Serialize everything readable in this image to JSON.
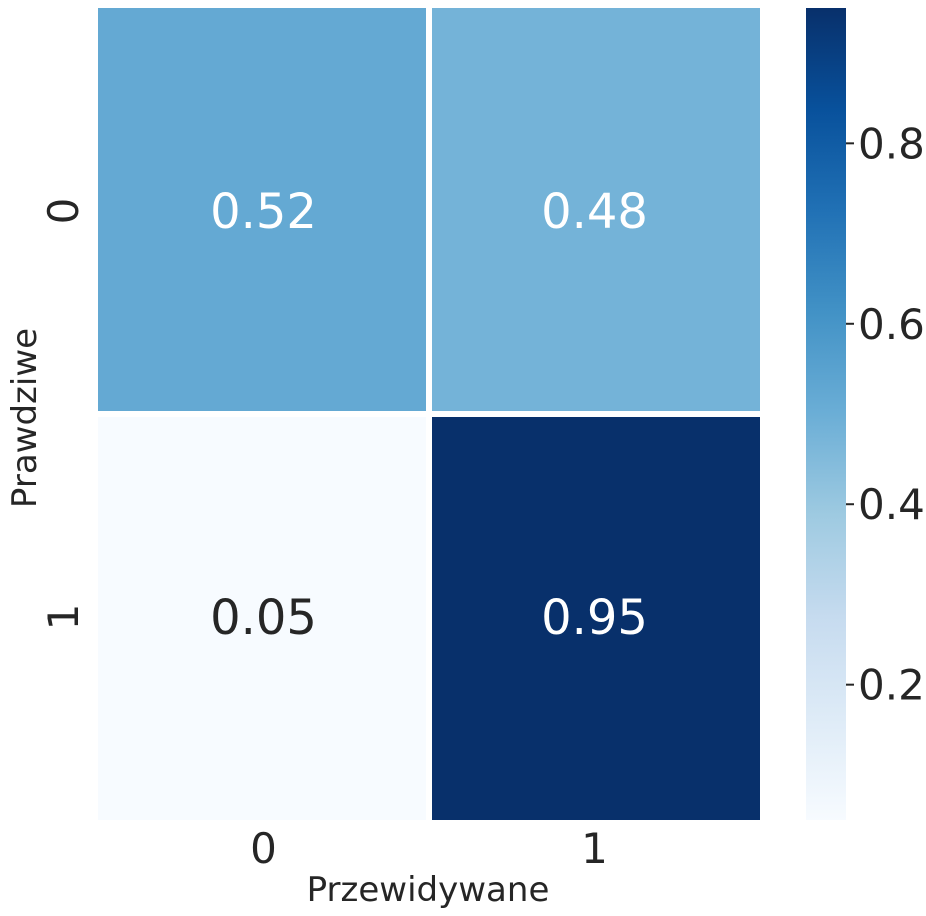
{
  "chart_data": {
    "type": "heatmap",
    "xlabel": "Przewidywane",
    "ylabel": "Prawdziwe",
    "x_categories": [
      "0",
      "1"
    ],
    "y_categories": [
      "0",
      "1"
    ],
    "values": [
      [
        0.52,
        0.48
      ],
      [
        0.05,
        0.95
      ]
    ],
    "value_labels": [
      [
        "0.52",
        "0.48"
      ],
      [
        "0.05",
        "0.95"
      ]
    ],
    "colormap": "Blues",
    "colorbar": {
      "range": [
        0.05,
        0.95
      ],
      "ticks": [
        0.2,
        0.4,
        0.6,
        0.8
      ],
      "tick_labels": [
        "0.2",
        "0.4",
        "0.6",
        "0.8"
      ]
    },
    "colors": {
      "dark_text": "#262626",
      "light_text": "#ffffff",
      "cell_border": "#ffffff"
    }
  }
}
